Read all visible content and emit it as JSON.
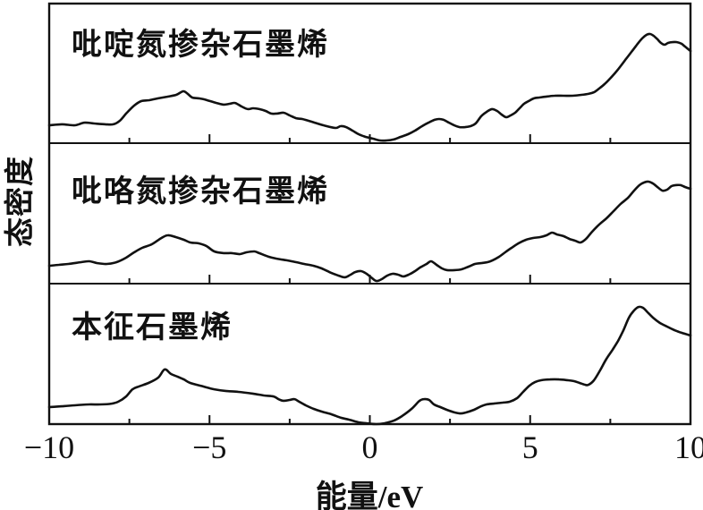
{
  "figure": {
    "background": "#ffffff",
    "ink_color": "#111111"
  },
  "chart_data": {
    "type": "line",
    "title": "",
    "xlabel": "能量/eV",
    "ylabel": "态密度",
    "xlim": [
      -10,
      10
    ],
    "x_major_ticks": [
      -10,
      -5,
      0,
      5,
      10
    ],
    "x_tick_labels": [
      "−10",
      "−5",
      "0",
      "5",
      "10"
    ],
    "x_minor_ticks": [
      -7.5,
      -2.5,
      2.5,
      7.5
    ],
    "grid": false,
    "legend_position": "none",
    "y_units": "arbitrary",
    "panels": [
      {
        "label": "吡啶氮掺杂石墨烯",
        "points": [
          [
            -10,
            0.128
          ],
          [
            -9.6,
            0.135
          ],
          [
            -9.2,
            0.128
          ],
          [
            -8.9,
            0.147
          ],
          [
            -8.6,
            0.141
          ],
          [
            -8.25,
            0.135
          ],
          [
            -8.0,
            0.135
          ],
          [
            -7.8,
            0.16
          ],
          [
            -7.6,
            0.212
          ],
          [
            -7.35,
            0.269
          ],
          [
            -7.13,
            0.301
          ],
          [
            -6.88,
            0.308
          ],
          [
            -6.6,
            0.321
          ],
          [
            -6.32,
            0.333
          ],
          [
            -6.04,
            0.346
          ],
          [
            -5.82,
            0.372
          ],
          [
            -5.68,
            0.353
          ],
          [
            -5.54,
            0.327
          ],
          [
            -5.34,
            0.321
          ],
          [
            -5.17,
            0.314
          ],
          [
            -4.98,
            0.301
          ],
          [
            -4.78,
            0.288
          ],
          [
            -4.56,
            0.276
          ],
          [
            -4.37,
            0.282
          ],
          [
            -4.2,
            0.288
          ],
          [
            -4.0,
            0.263
          ],
          [
            -3.81,
            0.244
          ],
          [
            -3.64,
            0.25
          ],
          [
            -3.45,
            0.244
          ],
          [
            -3.25,
            0.231
          ],
          [
            -3.08,
            0.212
          ],
          [
            -2.89,
            0.212
          ],
          [
            -2.69,
            0.218
          ],
          [
            -2.5,
            0.199
          ],
          [
            -2.3,
            0.179
          ],
          [
            -2.11,
            0.173
          ],
          [
            -1.91,
            0.16
          ],
          [
            -1.72,
            0.147
          ],
          [
            -1.45,
            0.128
          ],
          [
            -1.07,
            0.109
          ],
          [
            -0.91,
            0.122
          ],
          [
            -0.74,
            0.115
          ],
          [
            -0.54,
            0.09
          ],
          [
            -0.35,
            0.064
          ],
          [
            -0.13,
            0.045
          ],
          [
            0.1,
            0.032
          ],
          [
            0.32,
            0.019
          ],
          [
            0.52,
            0.019
          ],
          [
            0.74,
            0.026
          ],
          [
            0.96,
            0.045
          ],
          [
            1.19,
            0.064
          ],
          [
            1.41,
            0.09
          ],
          [
            1.63,
            0.122
          ],
          [
            1.83,
            0.147
          ],
          [
            2.02,
            0.167
          ],
          [
            2.16,
            0.173
          ],
          [
            2.3,
            0.167
          ],
          [
            2.47,
            0.147
          ],
          [
            2.63,
            0.128
          ],
          [
            2.8,
            0.115
          ],
          [
            2.97,
            0.115
          ],
          [
            3.14,
            0.122
          ],
          [
            3.3,
            0.141
          ],
          [
            3.47,
            0.192
          ],
          [
            3.64,
            0.224
          ],
          [
            3.81,
            0.244
          ],
          [
            3.97,
            0.231
          ],
          [
            4.11,
            0.205
          ],
          [
            4.25,
            0.186
          ],
          [
            4.39,
            0.199
          ],
          [
            4.53,
            0.218
          ],
          [
            4.67,
            0.25
          ],
          [
            4.81,
            0.282
          ],
          [
            4.95,
            0.301
          ],
          [
            5.12,
            0.321
          ],
          [
            5.29,
            0.327
          ],
          [
            5.48,
            0.333
          ],
          [
            5.76,
            0.34
          ],
          [
            6.04,
            0.34
          ],
          [
            6.32,
            0.34
          ],
          [
            6.6,
            0.346
          ],
          [
            6.82,
            0.353
          ],
          [
            6.99,
            0.365
          ],
          [
            7.15,
            0.391
          ],
          [
            7.32,
            0.423
          ],
          [
            7.49,
            0.462
          ],
          [
            7.66,
            0.506
          ],
          [
            7.82,
            0.551
          ],
          [
            7.99,
            0.603
          ],
          [
            8.16,
            0.654
          ],
          [
            8.33,
            0.705
          ],
          [
            8.49,
            0.75
          ],
          [
            8.63,
            0.776
          ],
          [
            8.74,
            0.782
          ],
          [
            8.85,
            0.769
          ],
          [
            8.97,
            0.744
          ],
          [
            9.08,
            0.718
          ],
          [
            9.19,
            0.705
          ],
          [
            9.3,
            0.718
          ],
          [
            9.44,
            0.724
          ],
          [
            9.58,
            0.724
          ],
          [
            9.72,
            0.712
          ],
          [
            9.83,
            0.692
          ],
          [
            10,
            0.66
          ]
        ]
      },
      {
        "label": "吡咯氮掺杂石墨烯",
        "points": [
          [
            -10,
            0.127
          ],
          [
            -9.7,
            0.134
          ],
          [
            -9.4,
            0.14
          ],
          [
            -9.0,
            0.153
          ],
          [
            -8.75,
            0.159
          ],
          [
            -8.5,
            0.146
          ],
          [
            -8.2,
            0.14
          ],
          [
            -7.9,
            0.153
          ],
          [
            -7.6,
            0.185
          ],
          [
            -7.35,
            0.223
          ],
          [
            -7.1,
            0.255
          ],
          [
            -6.8,
            0.28
          ],
          [
            -6.5,
            0.325
          ],
          [
            -6.3,
            0.344
          ],
          [
            -6.05,
            0.331
          ],
          [
            -5.8,
            0.312
          ],
          [
            -5.6,
            0.293
          ],
          [
            -5.35,
            0.287
          ],
          [
            -5.1,
            0.268
          ],
          [
            -4.85,
            0.229
          ],
          [
            -4.55,
            0.217
          ],
          [
            -4.3,
            0.217
          ],
          [
            -4.05,
            0.21
          ],
          [
            -3.85,
            0.223
          ],
          [
            -3.6,
            0.229
          ],
          [
            -3.45,
            0.217
          ],
          [
            -3.15,
            0.191
          ],
          [
            -2.9,
            0.178
          ],
          [
            -2.6,
            0.166
          ],
          [
            -2.3,
            0.153
          ],
          [
            -2.05,
            0.14
          ],
          [
            -1.75,
            0.127
          ],
          [
            -1.5,
            0.108
          ],
          [
            -1.2,
            0.076
          ],
          [
            -0.97,
            0.057
          ],
          [
            -0.78,
            0.045
          ],
          [
            -0.6,
            0.064
          ],
          [
            -0.45,
            0.083
          ],
          [
            -0.27,
            0.089
          ],
          [
            -0.1,
            0.07
          ],
          [
            0.04,
            0.045
          ],
          [
            0.2,
            0.019
          ],
          [
            0.37,
            0.032
          ],
          [
            0.54,
            0.057
          ],
          [
            0.71,
            0.07
          ],
          [
            0.88,
            0.064
          ],
          [
            1.04,
            0.051
          ],
          [
            1.21,
            0.064
          ],
          [
            1.41,
            0.089
          ],
          [
            1.57,
            0.115
          ],
          [
            1.77,
            0.14
          ],
          [
            1.91,
            0.159
          ],
          [
            2.08,
            0.134
          ],
          [
            2.25,
            0.108
          ],
          [
            2.41,
            0.096
          ],
          [
            2.64,
            0.096
          ],
          [
            2.86,
            0.102
          ],
          [
            3.08,
            0.121
          ],
          [
            3.28,
            0.14
          ],
          [
            3.47,
            0.146
          ],
          [
            3.67,
            0.153
          ],
          [
            3.83,
            0.166
          ],
          [
            4.03,
            0.191
          ],
          [
            4.22,
            0.223
          ],
          [
            4.42,
            0.255
          ],
          [
            4.64,
            0.287
          ],
          [
            4.87,
            0.312
          ],
          [
            5.09,
            0.325
          ],
          [
            5.31,
            0.331
          ],
          [
            5.51,
            0.344
          ],
          [
            5.68,
            0.363
          ],
          [
            5.84,
            0.35
          ],
          [
            6.04,
            0.338
          ],
          [
            6.23,
            0.318
          ],
          [
            6.4,
            0.306
          ],
          [
            6.57,
            0.293
          ],
          [
            6.74,
            0.318
          ],
          [
            6.93,
            0.369
          ],
          [
            7.15,
            0.42
          ],
          [
            7.38,
            0.465
          ],
          [
            7.6,
            0.516
          ],
          [
            7.82,
            0.567
          ],
          [
            8.05,
            0.611
          ],
          [
            8.24,
            0.662
          ],
          [
            8.41,
            0.701
          ],
          [
            8.55,
            0.72
          ],
          [
            8.69,
            0.726
          ],
          [
            8.83,
            0.713
          ],
          [
            9.0,
            0.682
          ],
          [
            9.13,
            0.662
          ],
          [
            9.27,
            0.669
          ],
          [
            9.41,
            0.694
          ],
          [
            9.55,
            0.701
          ],
          [
            9.69,
            0.701
          ],
          [
            9.83,
            0.688
          ],
          [
            10,
            0.675
          ]
        ]
      },
      {
        "label": "本征石墨烯",
        "points": [
          [
            -10,
            0.121
          ],
          [
            -9.6,
            0.127
          ],
          [
            -9.2,
            0.134
          ],
          [
            -8.75,
            0.14
          ],
          [
            -8.4,
            0.14
          ],
          [
            -8.05,
            0.146
          ],
          [
            -7.85,
            0.159
          ],
          [
            -7.6,
            0.197
          ],
          [
            -7.4,
            0.248
          ],
          [
            -7.2,
            0.268
          ],
          [
            -6.9,
            0.293
          ],
          [
            -6.6,
            0.331
          ],
          [
            -6.4,
            0.389
          ],
          [
            -6.2,
            0.357
          ],
          [
            -6.0,
            0.338
          ],
          [
            -5.8,
            0.318
          ],
          [
            -5.6,
            0.293
          ],
          [
            -5.2,
            0.268
          ],
          [
            -4.85,
            0.248
          ],
          [
            -4.5,
            0.236
          ],
          [
            -4.1,
            0.229
          ],
          [
            -3.65,
            0.217
          ],
          [
            -3.3,
            0.204
          ],
          [
            -3.0,
            0.197
          ],
          [
            -2.85,
            0.178
          ],
          [
            -2.7,
            0.166
          ],
          [
            -2.5,
            0.172
          ],
          [
            -2.35,
            0.178
          ],
          [
            -2.2,
            0.159
          ],
          [
            -2.0,
            0.134
          ],
          [
            -1.75,
            0.108
          ],
          [
            -1.5,
            0.089
          ],
          [
            -1.2,
            0.07
          ],
          [
            -0.9,
            0.045
          ],
          [
            -0.65,
            0.032
          ],
          [
            -0.35,
            0.013
          ],
          [
            -0.1,
            0.006
          ],
          [
            0.2,
            0.0
          ],
          [
            0.45,
            0.006
          ],
          [
            0.75,
            0.025
          ],
          [
            1.0,
            0.057
          ],
          [
            1.3,
            0.108
          ],
          [
            1.55,
            0.166
          ],
          [
            1.7,
            0.178
          ],
          [
            1.85,
            0.172
          ],
          [
            2.0,
            0.14
          ],
          [
            2.2,
            0.121
          ],
          [
            2.4,
            0.102
          ],
          [
            2.65,
            0.083
          ],
          [
            2.83,
            0.076
          ],
          [
            3.0,
            0.083
          ],
          [
            3.25,
            0.102
          ],
          [
            3.47,
            0.127
          ],
          [
            3.64,
            0.14
          ],
          [
            3.86,
            0.146
          ],
          [
            4.14,
            0.153
          ],
          [
            4.36,
            0.159
          ],
          [
            4.59,
            0.185
          ],
          [
            4.78,
            0.229
          ],
          [
            4.98,
            0.274
          ],
          [
            5.15,
            0.299
          ],
          [
            5.34,
            0.312
          ],
          [
            5.62,
            0.318
          ],
          [
            5.9,
            0.318
          ],
          [
            6.18,
            0.312
          ],
          [
            6.37,
            0.306
          ],
          [
            6.54,
            0.293
          ],
          [
            6.71,
            0.28
          ],
          [
            6.82,
            0.28
          ],
          [
            6.99,
            0.312
          ],
          [
            7.18,
            0.382
          ],
          [
            7.38,
            0.465
          ],
          [
            7.57,
            0.529
          ],
          [
            7.74,
            0.592
          ],
          [
            7.91,
            0.669
          ],
          [
            8.08,
            0.758
          ],
          [
            8.24,
            0.809
          ],
          [
            8.38,
            0.834
          ],
          [
            8.52,
            0.828
          ],
          [
            8.69,
            0.79
          ],
          [
            8.86,
            0.752
          ],
          [
            9.05,
            0.72
          ],
          [
            9.27,
            0.694
          ],
          [
            9.5,
            0.669
          ],
          [
            9.72,
            0.65
          ],
          [
            10,
            0.631
          ]
        ]
      }
    ]
  }
}
